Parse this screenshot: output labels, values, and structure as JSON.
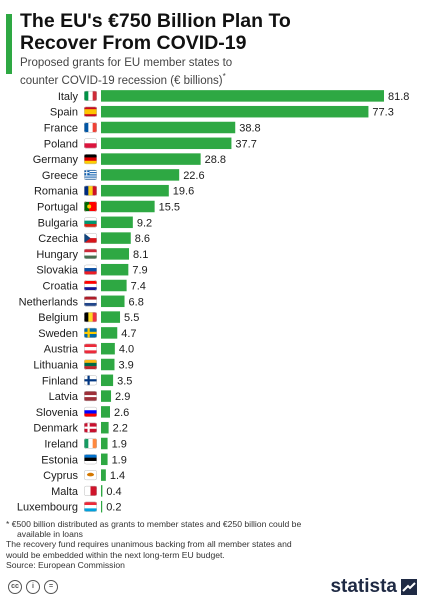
{
  "header": {
    "title_line1": "The EU's €750 Billion Plan To",
    "title_line2": "Recover From COVID-19",
    "subtitle_line1": "Proposed grants for EU member states to",
    "subtitle_line2": "counter COVID-19 recession (€ billions)",
    "subtitle_mark": "*"
  },
  "colors": {
    "bar": "#2ea843",
    "accent": "#2ea843",
    "text": "#1c1c1c"
  },
  "chart_data": {
    "type": "bar",
    "orientation": "horizontal",
    "title": "The EU's €750 Billion Plan To Recover From COVID-19",
    "subtitle": "Proposed grants for EU member states to counter COVID-19 recession (€ billions)*",
    "categories": [
      "Italy",
      "Spain",
      "France",
      "Poland",
      "Germany",
      "Greece",
      "Romania",
      "Portugal",
      "Bulgaria",
      "Czechia",
      "Hungary",
      "Slovakia",
      "Croatia",
      "Netherlands",
      "Belgium",
      "Sweden",
      "Austria",
      "Lithuania",
      "Finland",
      "Latvia",
      "Slovenia",
      "Denmark",
      "Ireland",
      "Estonia",
      "Cyprus",
      "Malta",
      "Luxembourg"
    ],
    "values": [
      81.8,
      77.3,
      38.8,
      37.7,
      28.8,
      22.6,
      19.6,
      15.5,
      9.2,
      8.6,
      8.1,
      7.9,
      7.4,
      6.8,
      5.5,
      4.7,
      4.0,
      3.9,
      3.5,
      2.9,
      2.6,
      2.2,
      1.9,
      1.9,
      1.4,
      0.4,
      0.2
    ],
    "value_labels": [
      "81.8",
      "77.3",
      "38.8",
      "37.7",
      "28.8",
      "22.6",
      "19.6",
      "15.5",
      "9.2",
      "8.6",
      "8.1",
      "7.9",
      "7.4",
      "6.8",
      "5.5",
      "4.7",
      "4.0",
      "3.9",
      "3.5",
      "2.9",
      "2.6",
      "2.2",
      "1.9",
      "1.9",
      "1.4",
      "0.4",
      "0.2"
    ],
    "xlim": [
      0,
      81.8
    ],
    "grid": false,
    "legend": "none"
  },
  "flags": [
    "italy-flag-icon",
    "spain-flag-icon",
    "france-flag-icon",
    "poland-flag-icon",
    "germany-flag-icon",
    "greece-flag-icon",
    "romania-flag-icon",
    "portugal-flag-icon",
    "bulgaria-flag-icon",
    "czechia-flag-icon",
    "hungary-flag-icon",
    "slovakia-flag-icon",
    "croatia-flag-icon",
    "netherlands-flag-icon",
    "belgium-flag-icon",
    "sweden-flag-icon",
    "austria-flag-icon",
    "lithuania-flag-icon",
    "finland-flag-icon",
    "latvia-flag-icon",
    "slovenia-flag-icon",
    "denmark-flag-icon",
    "ireland-flag-icon",
    "estonia-flag-icon",
    "cyprus-flag-icon",
    "malta-flag-icon",
    "luxembourg-flag-icon"
  ],
  "footnotes": {
    "note1_line1": "* €500 billion distributed as grants to member states and €250 billion could be",
    "note1_line2": "available in loans",
    "note2_line1": "The recovery fund requires unanimous backing from all member states and",
    "note2_line2": "would be embedded within the next long-term EU budget.",
    "source": "Source: European Commission"
  },
  "footer": {
    "cc_icons": [
      "creative-commons-icon",
      "attribution-icon",
      "no-derivatives-icon"
    ],
    "cc_glyphs": [
      "cc",
      "i",
      "="
    ],
    "logo_text": "statista"
  }
}
